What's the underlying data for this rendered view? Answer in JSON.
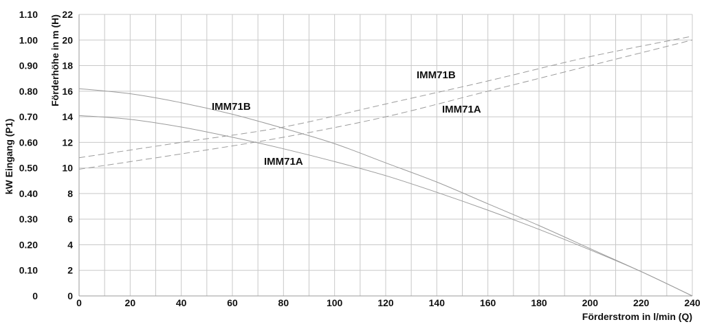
{
  "chart_data": {
    "type": "line",
    "xlabel": "Förderstrom in l/min (Q)",
    "ylabel_left": "kW Eingang (P1)",
    "ylabel_right": "Förderhöhe in m (H)",
    "xlim": [
      0,
      240
    ],
    "ylim_head": [
      0,
      22
    ],
    "ylim_power": [
      0,
      1.1
    ],
    "x_ticks": [
      "0",
      "20",
      "40",
      "60",
      "80",
      "100",
      "120",
      "140",
      "160",
      "180",
      "200",
      "220",
      "240"
    ],
    "head_ticks": [
      "0",
      "2",
      "4",
      "6",
      "8",
      "10",
      "12",
      "14",
      "16",
      "18",
      "20",
      "22"
    ],
    "power_ticks": [
      "0",
      "0.10",
      "0.20",
      "0.30",
      "0.40",
      "0.50",
      "0.60",
      "0.70",
      "0.80",
      "0.90",
      "1.00",
      "1.10"
    ],
    "grid": true,
    "x_grid_step": 10,
    "colors": {
      "curve": "#9a9a9a",
      "grid": "#c8c8c8",
      "text": "#111111"
    },
    "series": [
      {
        "name": "IMM71B",
        "kind": "head",
        "style": "solid",
        "x": [
          0,
          20,
          40,
          60,
          80,
          100,
          120,
          140,
          160,
          180,
          200,
          220,
          240
        ],
        "values": [
          16.2,
          15.8,
          15.1,
          14.2,
          13.1,
          11.9,
          10.4,
          8.9,
          7.2,
          5.5,
          3.7,
          1.9,
          0.0
        ]
      },
      {
        "name": "IMM71A",
        "kind": "head",
        "style": "solid",
        "x": [
          0,
          20,
          40,
          60,
          80,
          100,
          120,
          140,
          160,
          180,
          200,
          220,
          240
        ],
        "values": [
          14.1,
          13.8,
          13.2,
          12.4,
          11.5,
          10.5,
          9.4,
          8.1,
          6.7,
          5.2,
          3.6,
          1.9,
          0.0
        ]
      },
      {
        "name": "IMM71B",
        "kind": "power",
        "style": "dashed",
        "x": [
          0,
          40,
          80,
          120,
          160,
          200,
          240
        ],
        "values": [
          0.54,
          0.6,
          0.66,
          0.75,
          0.84,
          0.935,
          1.015
        ]
      },
      {
        "name": "IMM71A",
        "kind": "power",
        "style": "dashed",
        "x": [
          0,
          40,
          80,
          120,
          160,
          200,
          240
        ],
        "values": [
          0.495,
          0.555,
          0.62,
          0.7,
          0.8,
          0.9,
          1.0
        ]
      }
    ],
    "annotations": [
      "IMM71B",
      "IMM71A",
      "IMM71B",
      "IMM71A"
    ]
  }
}
